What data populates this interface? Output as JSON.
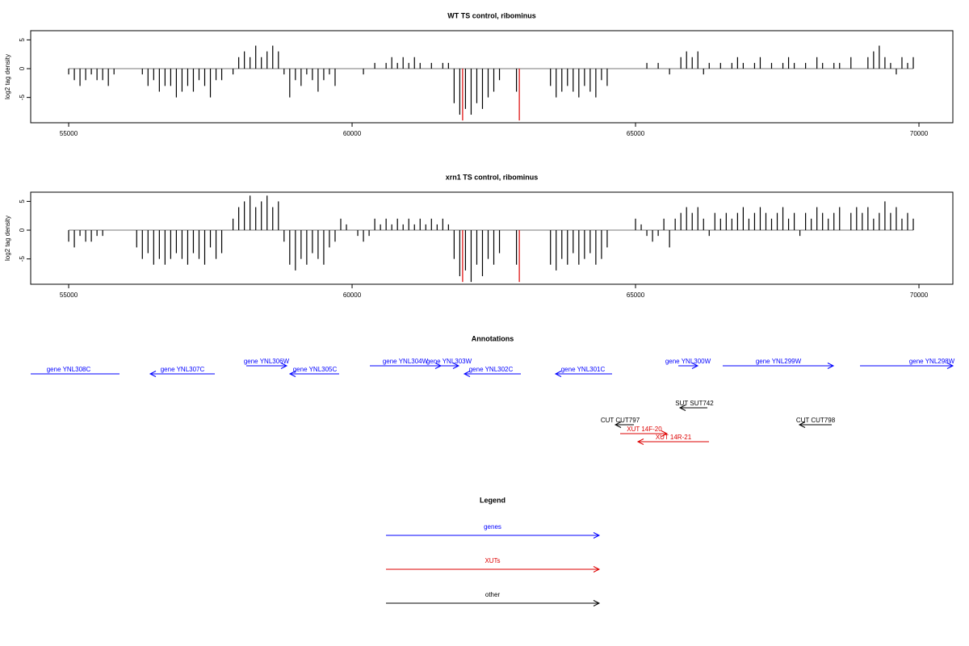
{
  "chart_data": [
    {
      "type": "bar",
      "title": "WT TS control, ribominus",
      "ylabel": "log2 tag density",
      "xlim": [
        54330,
        70598
      ],
      "ylim": [
        -9.4,
        6.6
      ],
      "xticks": [
        55000,
        60000,
        65000,
        70000
      ],
      "yticks": [
        -5,
        0,
        5
      ],
      "series": [
        {
          "color": "#000000",
          "start": 55000,
          "step": 100,
          "values": [
            -1,
            -2,
            -3,
            -2,
            -1,
            -2,
            -2,
            -3,
            -1,
            0,
            0,
            0,
            0,
            -1,
            -3,
            -2,
            -4,
            -3,
            -3,
            -5,
            -4,
            -3,
            -4,
            -2,
            -3,
            -5,
            -2,
            -2,
            0,
            -1,
            2,
            3,
            2,
            4,
            2,
            3,
            4,
            3,
            -1,
            -5,
            -2,
            -3,
            -1,
            -2,
            -4,
            -2,
            -1,
            -3,
            0,
            0,
            0,
            0,
            -1,
            0,
            1,
            0,
            1,
            2,
            1,
            2,
            1,
            2,
            1,
            0,
            1,
            0,
            1,
            1,
            -6,
            -8,
            -7,
            -8,
            -6,
            -7,
            -5,
            -4,
            -2,
            0,
            0,
            -4,
            0,
            0,
            0,
            0,
            0,
            -3,
            -5,
            -4,
            -3,
            -4,
            -5,
            -3,
            -4,
            -5,
            -2,
            -3,
            0,
            0,
            0,
            0,
            0,
            0,
            1,
            0,
            1,
            0,
            -1,
            0,
            2,
            3,
            2,
            3,
            -1,
            1,
            0,
            1,
            0,
            1,
            2,
            1,
            0,
            1,
            2,
            0,
            1,
            0,
            1,
            2,
            1,
            0,
            1,
            0,
            2,
            1,
            0,
            1,
            1,
            0,
            2,
            0,
            0,
            2,
            3,
            4,
            2,
            1,
            -1,
            2,
            1,
            2
          ]
        },
        {
          "color": "#dd0000",
          "x": [
            61950,
            62950
          ],
          "values": [
            -9,
            -9
          ]
        }
      ]
    },
    {
      "type": "bar",
      "title": "xrn1 TS control, ribominus",
      "ylabel": "log2 tag density",
      "xlim": [
        54330,
        70598
      ],
      "ylim": [
        -9.4,
        6.6
      ],
      "xticks": [
        55000,
        60000,
        65000,
        70000
      ],
      "yticks": [
        -5,
        0,
        5
      ],
      "series": [
        {
          "color": "#000000",
          "start": 55000,
          "step": 100,
          "values": [
            -2,
            -3,
            -1,
            -2,
            -2,
            -1,
            -1,
            0,
            0,
            0,
            0,
            0,
            -3,
            -5,
            -4,
            -6,
            -5,
            -6,
            -5,
            -4,
            -5,
            -6,
            -4,
            -5,
            -6,
            -3,
            -5,
            -4,
            0,
            2,
            4,
            5,
            6,
            4,
            5,
            6,
            4,
            5,
            -2,
            -6,
            -7,
            -5,
            -6,
            -4,
            -5,
            -6,
            -3,
            -2,
            2,
            1,
            0,
            -1,
            -2,
            -1,
            2,
            1,
            2,
            1,
            2,
            1,
            2,
            1,
            2,
            1,
            2,
            1,
            2,
            1,
            -5,
            -8,
            -7,
            -9,
            -6,
            -8,
            -5,
            -6,
            -4,
            0,
            0,
            -6,
            0,
            0,
            0,
            0,
            0,
            -6,
            -7,
            -5,
            -6,
            -4,
            -6,
            -5,
            -4,
            -6,
            -5,
            -3,
            0,
            0,
            0,
            0,
            2,
            1,
            -1,
            -2,
            -1,
            2,
            -3,
            2,
            3,
            4,
            3,
            4,
            2,
            -1,
            3,
            2,
            3,
            2,
            3,
            4,
            2,
            3,
            4,
            3,
            2,
            3,
            4,
            2,
            3,
            -1,
            3,
            2,
            4,
            3,
            2,
            3,
            4,
            0,
            3,
            4,
            3,
            4,
            2,
            3,
            5,
            3,
            4,
            2,
            3,
            2
          ]
        },
        {
          "color": "#dd0000",
          "x": [
            61950,
            62950
          ],
          "values": [
            -9,
            -9
          ]
        }
      ]
    }
  ],
  "annotations": {
    "title": "Annotations",
    "features": [
      {
        "label": "gene YNL308C",
        "color": "#0000ff"
      },
      {
        "label": "gene YNL307C",
        "color": "#0000ff"
      },
      {
        "label": "gene YNL306W",
        "color": "#0000ff"
      },
      {
        "label": "gene YNL305C",
        "color": "#0000ff"
      },
      {
        "label": "gene YNL304W",
        "color": "#0000ff"
      },
      {
        "label": "gene YNL303W",
        "color": "#0000ff"
      },
      {
        "label": "gene YNL302C",
        "color": "#0000ff"
      },
      {
        "label": "gene YNL301C",
        "color": "#0000ff"
      },
      {
        "label": "gene YNL300W",
        "color": "#0000ff"
      },
      {
        "label": "gene YNL299W",
        "color": "#0000ff"
      },
      {
        "label": "gene YNL298W",
        "color": "#0000ff"
      },
      {
        "label": "SUT SUT742",
        "color": "#000000"
      },
      {
        "label": "CUT CUT797",
        "color": "#000000"
      },
      {
        "label": "CUT CUT798",
        "color": "#000000"
      },
      {
        "label": "XUT 14F-20",
        "color": "#dd0000"
      },
      {
        "label": "XUT 14R-21",
        "color": "#dd0000"
      }
    ]
  },
  "legend": {
    "title": "Legend",
    "items": [
      {
        "label": "genes",
        "color": "#0000ff"
      },
      {
        "label": "XUTs",
        "color": "#dd0000"
      },
      {
        "label": "other",
        "color": "#000000"
      }
    ]
  }
}
